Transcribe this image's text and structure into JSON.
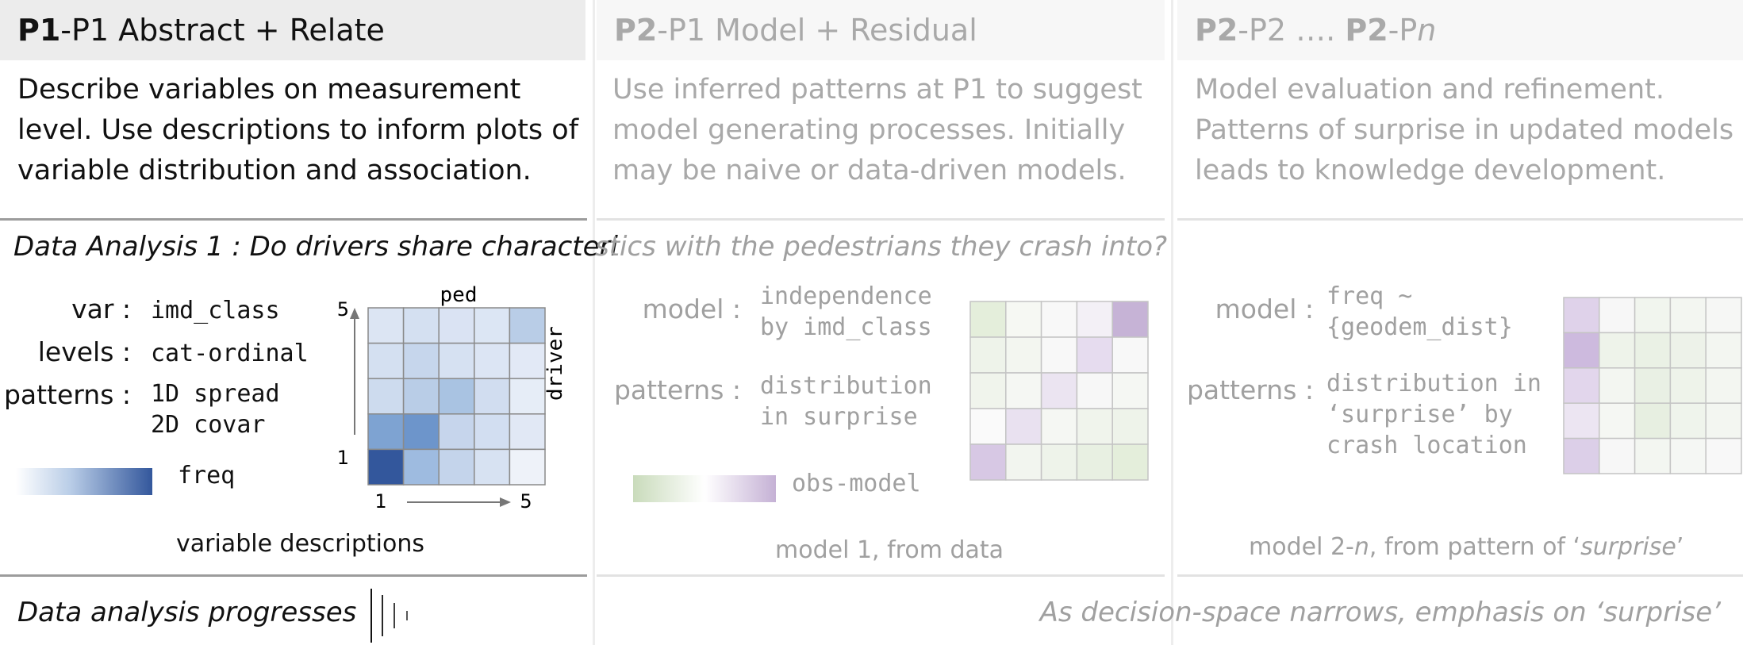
{
  "columns": [
    {
      "bold": "P1",
      "rest": "-P1 Abstract + Relate",
      "description": [
        "Describe variables on measurement",
        "level. Use descriptions to inform plots of",
        "variable distribution and association."
      ]
    },
    {
      "bold": "P2",
      "rest": "-P1 Model + Residual",
      "description": [
        "Use inferred patterns at P1 to suggest",
        "model generating processes. Initially",
        "may be naive or data-driven models."
      ]
    },
    {
      "bold1": "P2",
      "mid": "-P2 …. ",
      "bold2": "P2",
      "dash": "-P",
      "italic": "n",
      "description": [
        "Model evaluation and refinement.",
        "Patterns of surprise in updated models",
        "leads to knowledge development."
      ]
    }
  ],
  "question": {
    "part1": "Data Analysis 1 : Do drivers share characteri",
    "part2": "stics with the pedestrians they crash into?"
  },
  "panel1": {
    "var_label": "var :",
    "var_value": "imd_class",
    "levels_label": "levels :",
    "levels_value": "cat-ordinal",
    "patterns_label": "patterns :",
    "patterns_value": [
      "1D spread",
      "2D covar"
    ],
    "legend_label": "freq",
    "x_axis": "ped",
    "y_axis": "driver",
    "tick_x_min": "1",
    "tick_x_max": "5",
    "tick_y_min": "1",
    "tick_y_max": "5",
    "caption": "variable descriptions",
    "heatmap_colors": [
      [
        "#dce5f3",
        "#d4e0f1",
        "#dae3f3",
        "#dce6f4",
        "#b9cde7"
      ],
      [
        "#d4e0f1",
        "#c6d6ec",
        "#d6e1f2",
        "#dce5f4",
        "#e2e9f6"
      ],
      [
        "#cddbee",
        "#b9cde7",
        "#a9c3e2",
        "#d1ddf0",
        "#e6edf7"
      ],
      [
        "#7ea3d2",
        "#6d95cb",
        "#c6d5ec",
        "#d2def1",
        "#e1e8f5"
      ],
      [
        "#33579c",
        "#9ebbe0",
        "#c4d4eb",
        "#d7e2f2",
        "#eef2f9"
      ]
    ]
  },
  "panel2": {
    "model_label": "model :",
    "model_value": [
      "independence",
      "by imd_class"
    ],
    "patterns_label": "patterns :",
    "patterns_value": [
      "distribution",
      "in surprise"
    ],
    "legend_label": "obs-model",
    "caption": "model 1, from data",
    "heatmap_colors": [
      [
        "#e4eedb",
        "#f6f8f3",
        "#f8f8f8",
        "#f3f0f6",
        "#c6b3d6"
      ],
      [
        "#eef3ea",
        "#f3f6f0",
        "#f8f8f8",
        "#e6dcef",
        "#f8f8f8"
      ],
      [
        "#f0f4ec",
        "#f5f7f3",
        "#ebe4f1",
        "#f7f7f7",
        "#f5f7f3"
      ],
      [
        "#fafafa",
        "#e9e1f0",
        "#f5f7f3",
        "#f0f4ec",
        "#eef3ea"
      ],
      [
        "#d7c8e4",
        "#f2f5ef",
        "#eef3ea",
        "#e8f0e2",
        "#e4eedb"
      ]
    ]
  },
  "panel3": {
    "model_label": "model :",
    "model_value": [
      "freq ~",
      "{geodem_dist}"
    ],
    "patterns_label": "patterns :",
    "patterns_value": [
      "distribution in",
      "‘surprise’ by",
      "crash location"
    ],
    "caption_prefix": "model 2-",
    "caption_n": "n",
    "caption_mid": ", from pattern of ‘",
    "caption_italic": "surprise",
    "caption_end": "’",
    "heatmap_colors": [
      [
        "#dfd2ea",
        "#f7f7f7",
        "#f1f5ee",
        "#f3f6f1",
        "#f6f7f5"
      ],
      [
        "#cdbade",
        "#eef3ea",
        "#eaf1e5",
        "#edf2e9",
        "#f3f6f1"
      ],
      [
        "#e2d6ec",
        "#f3f6f1",
        "#e9f0e4",
        "#eef3ea",
        "#f3f6f1"
      ],
      [
        "#ece5f2",
        "#f5f7f3",
        "#e7efe1",
        "#eff4ec",
        "#f3f6f1"
      ],
      [
        "#dccfe8",
        "#f7f7f7",
        "#f3f6f1",
        "#f5f7f4",
        "#f8f8f8"
      ]
    ]
  },
  "footer": {
    "left": "Data analysis progresses",
    "right": "As decision-space narrows,  emphasis on ‘surprise’"
  }
}
